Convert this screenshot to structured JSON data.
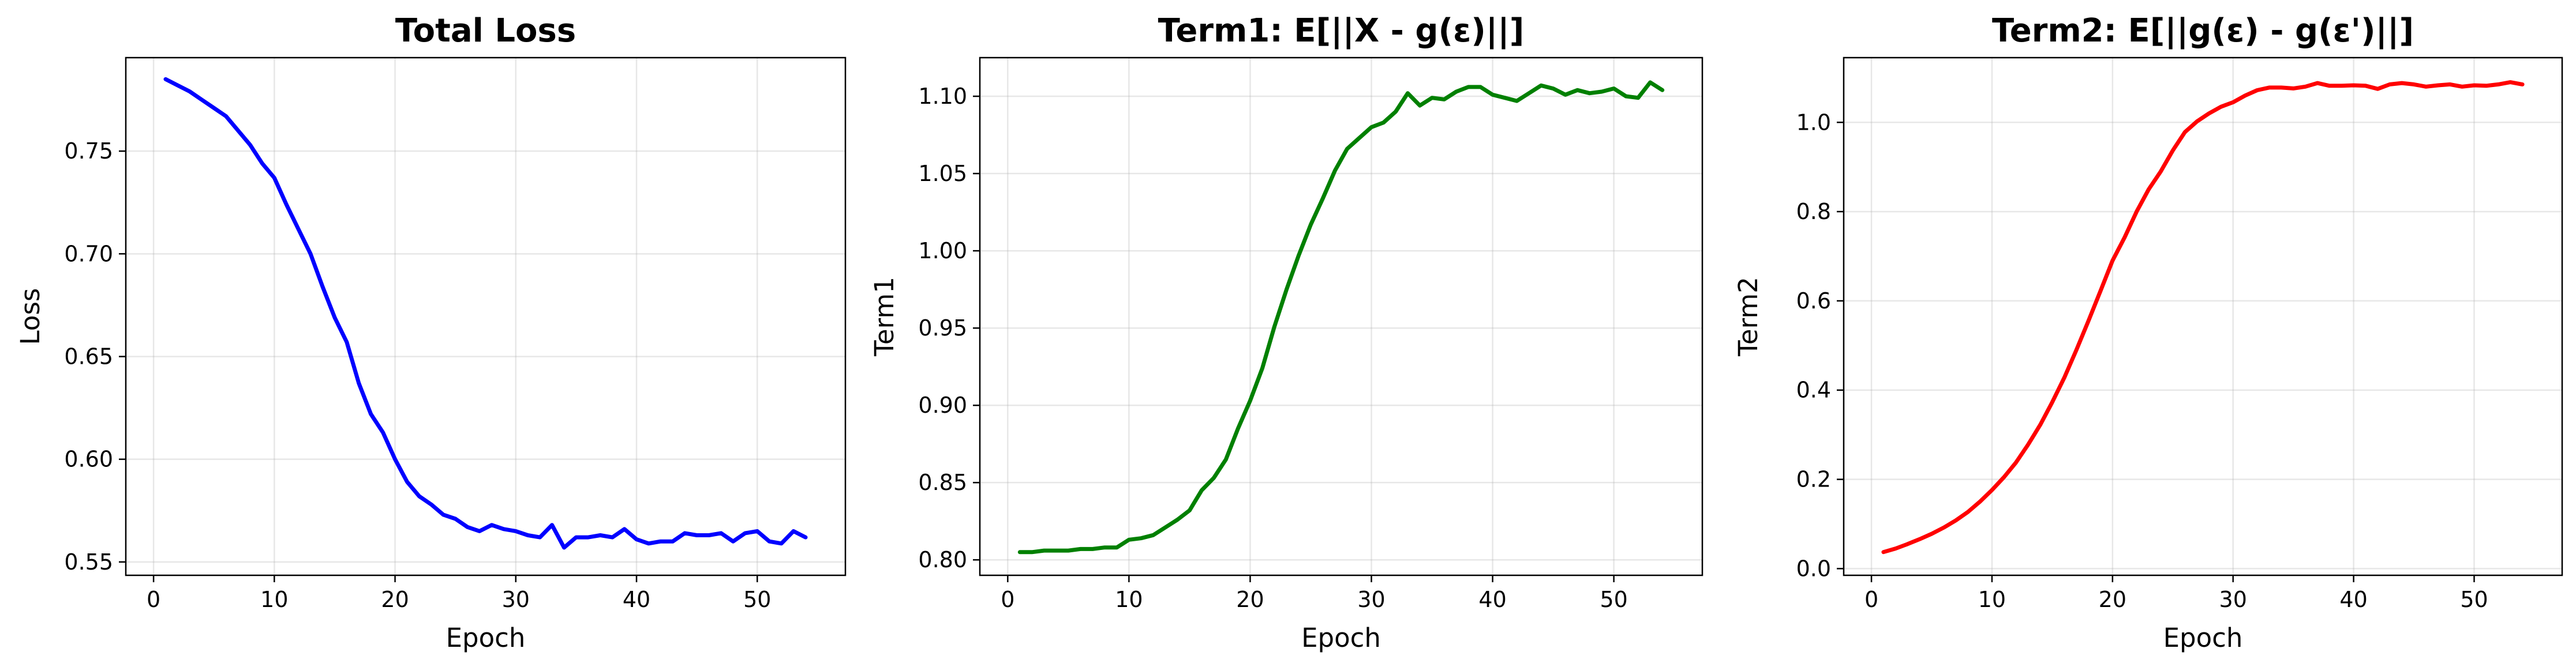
{
  "chart_data": [
    {
      "type": "line",
      "title": "Total Loss",
      "xlabel": "Epoch",
      "ylabel": "Loss",
      "xlim": [
        -2.3,
        57.3
      ],
      "ylim": [
        0.5435,
        0.7955
      ],
      "xticks": [
        0,
        10,
        20,
        30,
        40,
        50
      ],
      "yticks": [
        0.55,
        0.6,
        0.65,
        0.7,
        0.75
      ],
      "ytick_labels": [
        "0.55",
        "0.60",
        "0.65",
        "0.70",
        "0.75"
      ],
      "grid": true,
      "color": "#0000ff",
      "x": [
        1,
        2,
        3,
        4,
        5,
        6,
        7,
        8,
        9,
        10,
        11,
        12,
        13,
        14,
        15,
        16,
        17,
        18,
        19,
        20,
        21,
        22,
        23,
        24,
        25,
        26,
        27,
        28,
        29,
        30,
        31,
        32,
        33,
        34,
        35,
        36,
        37,
        38,
        39,
        40,
        41,
        42,
        43,
        44,
        45,
        46,
        47,
        48,
        49,
        50,
        51,
        52,
        53,
        54
      ],
      "y": [
        0.785,
        0.782,
        0.779,
        0.775,
        0.771,
        0.767,
        0.76,
        0.753,
        0.744,
        0.737,
        0.724,
        0.712,
        0.7,
        0.684,
        0.669,
        0.657,
        0.637,
        0.622,
        0.613,
        0.6,
        0.589,
        0.582,
        0.578,
        0.573,
        0.571,
        0.567,
        0.565,
        0.568,
        0.566,
        0.565,
        0.563,
        0.562,
        0.568,
        0.557,
        0.562,
        0.562,
        0.563,
        0.562,
        0.566,
        0.561,
        0.559,
        0.56,
        0.56,
        0.564,
        0.563,
        0.563,
        0.564,
        0.56,
        0.564,
        0.565,
        0.56,
        0.559,
        0.565,
        0.562
      ]
    },
    {
      "type": "line",
      "title": "Term1: E[||X - g(ε)||]",
      "xlabel": "Epoch",
      "ylabel": "Term1",
      "xlim": [
        -2.3,
        57.3
      ],
      "ylim": [
        0.79,
        1.125
      ],
      "xticks": [
        0,
        10,
        20,
        30,
        40,
        50
      ],
      "yticks": [
        0.8,
        0.85,
        0.9,
        0.95,
        1.0,
        1.05,
        1.1
      ],
      "ytick_labels": [
        "0.80",
        "0.85",
        "0.90",
        "0.95",
        "1.00",
        "1.05",
        "1.10"
      ],
      "grid": true,
      "color": "#008000",
      "x": [
        1,
        2,
        3,
        4,
        5,
        6,
        7,
        8,
        9,
        10,
        11,
        12,
        13,
        14,
        15,
        16,
        17,
        18,
        19,
        20,
        21,
        22,
        23,
        24,
        25,
        26,
        27,
        28,
        29,
        30,
        31,
        32,
        33,
        34,
        35,
        36,
        37,
        38,
        39,
        40,
        41,
        42,
        43,
        44,
        45,
        46,
        47,
        48,
        49,
        50,
        51,
        52,
        53,
        54
      ],
      "y": [
        0.805,
        0.805,
        0.806,
        0.806,
        0.806,
        0.807,
        0.807,
        0.808,
        0.808,
        0.813,
        0.814,
        0.816,
        0.821,
        0.826,
        0.832,
        0.845,
        0.853,
        0.865,
        0.885,
        0.903,
        0.924,
        0.951,
        0.975,
        0.997,
        1.017,
        1.034,
        1.052,
        1.066,
        1.073,
        1.08,
        1.083,
        1.09,
        1.102,
        1.094,
        1.099,
        1.098,
        1.103,
        1.106,
        1.106,
        1.101,
        1.099,
        1.097,
        1.102,
        1.107,
        1.105,
        1.101,
        1.104,
        1.102,
        1.103,
        1.105,
        1.1,
        1.099,
        1.109,
        1.104
      ]
    },
    {
      "type": "line",
      "title": "Term2: E[||g(ε) - g(ε')||]",
      "xlabel": "Epoch",
      "ylabel": "Term2",
      "xlim": [
        -2.3,
        57.3
      ],
      "ylim": [
        -0.015,
        1.145
      ],
      "xticks": [
        0,
        10,
        20,
        30,
        40,
        50
      ],
      "yticks": [
        0.0,
        0.2,
        0.4,
        0.6,
        0.8,
        1.0
      ],
      "ytick_labels": [
        "0.0",
        "0.2",
        "0.4",
        "0.6",
        "0.8",
        "1.0"
      ],
      "grid": true,
      "color": "#ff0000",
      "x": [
        1,
        2,
        3,
        4,
        5,
        6,
        7,
        8,
        9,
        10,
        11,
        12,
        13,
        14,
        15,
        16,
        17,
        18,
        19,
        20,
        21,
        22,
        23,
        24,
        25,
        26,
        27,
        28,
        29,
        30,
        31,
        32,
        33,
        34,
        35,
        36,
        37,
        38,
        39,
        40,
        41,
        42,
        43,
        44,
        45,
        46,
        47,
        48,
        49,
        50,
        51,
        52,
        53,
        54
      ],
      "y": [
        0.037,
        0.045,
        0.055,
        0.066,
        0.078,
        0.092,
        0.108,
        0.127,
        0.15,
        0.176,
        0.205,
        0.238,
        0.278,
        0.322,
        0.373,
        0.428,
        0.49,
        0.555,
        0.622,
        0.69,
        0.742,
        0.8,
        0.85,
        0.89,
        0.937,
        0.978,
        1.002,
        1.02,
        1.035,
        1.045,
        1.06,
        1.072,
        1.078,
        1.078,
        1.076,
        1.08,
        1.088,
        1.082,
        1.082,
        1.083,
        1.082,
        1.075,
        1.085,
        1.088,
        1.085,
        1.08,
        1.083,
        1.085,
        1.08,
        1.083,
        1.082,
        1.085,
        1.09,
        1.085
      ]
    }
  ]
}
